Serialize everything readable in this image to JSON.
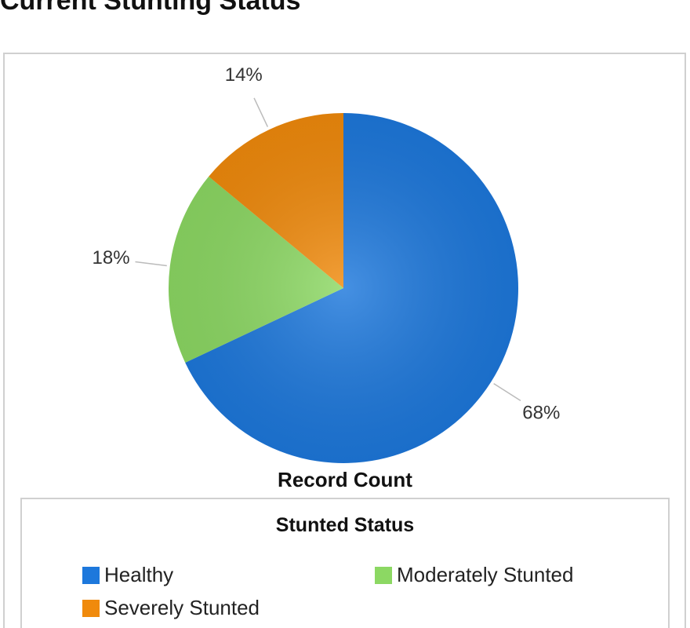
{
  "chart_data": {
    "type": "pie",
    "title": "Current Stunting Status",
    "categories": [
      "Healthy",
      "Moderately Stunted",
      "Severely Stunted"
    ],
    "values": [
      68,
      18,
      14
    ],
    "value_labels": [
      "68%",
      "18%",
      "14%"
    ],
    "colors": [
      "#1d78dc",
      "#8cd863",
      "#f08a0c"
    ],
    "x_label": "Record Count",
    "legend_title": "Stunted Status"
  }
}
